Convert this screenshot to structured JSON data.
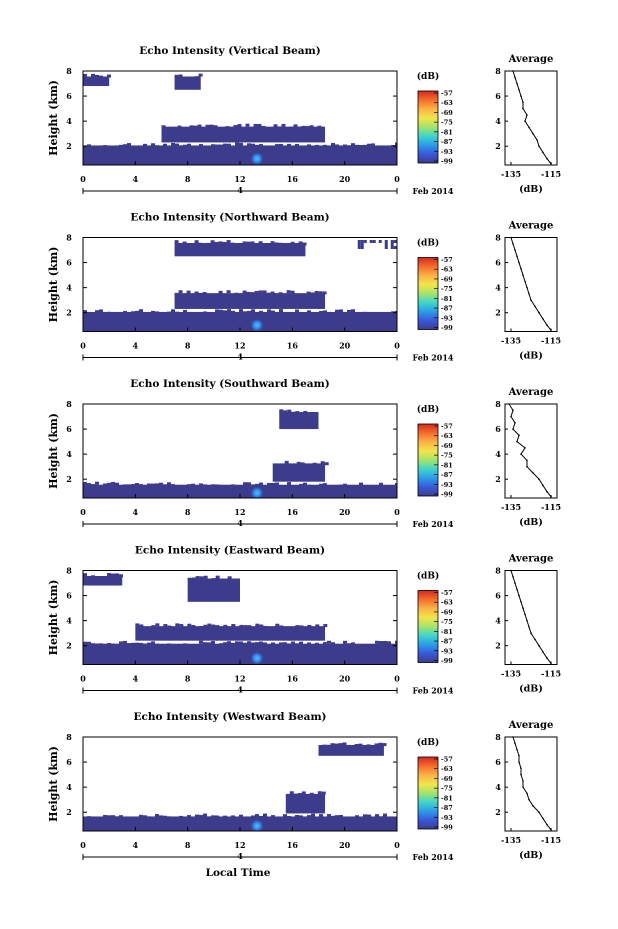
{
  "figure": {
    "xlabel": "Local Time",
    "date_label": "Feb 2014",
    "colorbar_unit": "(dB)",
    "colorbar_ticks": [
      "-57",
      "-63",
      "-69",
      "-75",
      "-81",
      "-87",
      "-93",
      "-99"
    ],
    "colorbar_colors": [
      "#d6281f",
      "#f46d2d",
      "#fbb247",
      "#f2e54a",
      "#a6e36b",
      "#3fd6c9",
      "#2c9ce8",
      "#3a58d9",
      "#3d3c8c"
    ],
    "no_echo_color": "#3d3c8c",
    "side_title": "Average",
    "side_xlabel": "(dB)",
    "side_xticks": [
      "-135",
      "-115"
    ],
    "day_tick_label": "4"
  },
  "chart_data": [
    {
      "type": "heatmap",
      "title": "Echo Intensity (Vertical Beam)",
      "ylabel": "Height (km)",
      "x_range": [
        0,
        24
      ],
      "x_ticks": [
        "0",
        "4",
        "8",
        "12",
        "16",
        "20",
        "0"
      ],
      "y_range": [
        0.5,
        8
      ],
      "y_ticks": [
        "2",
        "4",
        "6",
        "8"
      ],
      "echo_regions": [
        {
          "x": [
            0,
            24
          ],
          "y": [
            0.5,
            2.3
          ]
        },
        {
          "x": [
            6,
            18.5
          ],
          "y": [
            2.3,
            3.8
          ]
        },
        {
          "x": [
            0,
            2
          ],
          "y": [
            6.8,
            7.8
          ]
        },
        {
          "x": [
            7,
            9
          ],
          "y": [
            6.5,
            7.8
          ]
        }
      ],
      "echo_peak": {
        "x": 13.3,
        "y": 1.0,
        "level": "-81"
      },
      "profile": {
        "x_range": [
          -138,
          -112
        ],
        "y_range": [
          0.5,
          8
        ],
        "height": [
          8,
          7.5,
          7,
          6.5,
          6,
          5.5,
          5,
          4.5,
          4,
          3.5,
          3,
          2.5,
          2,
          1.5,
          1,
          0.6
        ],
        "value": [
          -134,
          -133,
          -132,
          -131,
          -130,
          -129,
          -129,
          -127,
          -128,
          -126,
          -124,
          -122,
          -121,
          -119,
          -117,
          -115
        ]
      }
    },
    {
      "type": "heatmap",
      "title": "Echo Intensity (Northward Beam)",
      "ylabel": "Height (km)",
      "x_range": [
        0,
        24
      ],
      "x_ticks": [
        "0",
        "4",
        "8",
        "12",
        "16",
        "20",
        "0"
      ],
      "y_range": [
        0.5,
        8
      ],
      "y_ticks": [
        "2",
        "4",
        "6",
        "8"
      ],
      "echo_regions": [
        {
          "x": [
            0,
            24
          ],
          "y": [
            0.5,
            2.3
          ]
        },
        {
          "x": [
            7,
            18.5
          ],
          "y": [
            2.3,
            3.8
          ]
        },
        {
          "x": [
            7,
            17
          ],
          "y": [
            6.5,
            7.8
          ]
        },
        {
          "x": [
            21,
            24
          ],
          "y": [
            7.2,
            7.8
          ]
        }
      ],
      "echo_peak": {
        "x": 13.3,
        "y": 1.0,
        "level": "-81"
      },
      "profile": {
        "x_range": [
          -138,
          -112
        ],
        "y_range": [
          0.5,
          8
        ],
        "height": [
          8,
          7.5,
          7,
          6.5,
          6,
          5.5,
          5,
          4.5,
          4,
          3.5,
          3,
          2.5,
          2,
          1.5,
          1,
          0.6
        ],
        "value": [
          -135,
          -134,
          -133,
          -132,
          -131,
          -130,
          -129,
          -128,
          -127,
          -126,
          -125,
          -123,
          -121,
          -119,
          -117,
          -115
        ]
      }
    },
    {
      "type": "heatmap",
      "title": "Echo Intensity (Southward Beam)",
      "ylabel": "Height (km)",
      "x_range": [
        0,
        24
      ],
      "x_ticks": [
        "0",
        "4",
        "8",
        "12",
        "16",
        "20",
        "0"
      ],
      "y_range": [
        0.5,
        8
      ],
      "y_ticks": [
        "2",
        "4",
        "6",
        "8"
      ],
      "echo_regions": [
        {
          "x": [
            0,
            24
          ],
          "y": [
            0.5,
            1.8
          ]
        },
        {
          "x": [
            14.5,
            18.5
          ],
          "y": [
            1.8,
            3.5
          ]
        },
        {
          "x": [
            15,
            18
          ],
          "y": [
            6.0,
            7.6
          ]
        }
      ],
      "echo_peak": {
        "x": 13.3,
        "y": 0.9,
        "level": "-81"
      },
      "profile": {
        "x_range": [
          -138,
          -112
        ],
        "y_range": [
          0.5,
          8
        ],
        "height": [
          8,
          7.5,
          7,
          6.5,
          6,
          5.5,
          5,
          4.5,
          4,
          3.5,
          3,
          2.5,
          2,
          1.5,
          1,
          0.6
        ],
        "value": [
          -136,
          -134,
          -135,
          -133,
          -134,
          -131,
          -132,
          -128,
          -130,
          -127,
          -127,
          -124,
          -121,
          -119,
          -117,
          -115
        ]
      }
    },
    {
      "type": "heatmap",
      "title": "Echo Intensity (Eastward Beam)",
      "ylabel": "Height (km)",
      "x_range": [
        0,
        24
      ],
      "x_ticks": [
        "0",
        "4",
        "8",
        "12",
        "16",
        "20",
        "0"
      ],
      "y_range": [
        0.5,
        8
      ],
      "y_ticks": [
        "2",
        "4",
        "6",
        "8"
      ],
      "echo_regions": [
        {
          "x": [
            0,
            24
          ],
          "y": [
            0.5,
            2.4
          ]
        },
        {
          "x": [
            4,
            18.5
          ],
          "y": [
            2.4,
            3.8
          ]
        },
        {
          "x": [
            0,
            3
          ],
          "y": [
            6.8,
            7.8
          ]
        },
        {
          "x": [
            8,
            12
          ],
          "y": [
            5.5,
            7.6
          ]
        }
      ],
      "echo_peak": {
        "x": 13.3,
        "y": 1.0,
        "level": "-81"
      },
      "profile": {
        "x_range": [
          -138,
          -112
        ],
        "y_range": [
          0.5,
          8
        ],
        "height": [
          8,
          7.5,
          7,
          6.5,
          6,
          5.5,
          5,
          4.5,
          4,
          3.5,
          3,
          2.5,
          2,
          1.5,
          1,
          0.6
        ],
        "value": [
          -135,
          -134,
          -133,
          -132,
          -131,
          -130,
          -129,
          -128,
          -127,
          -126,
          -125,
          -123,
          -121,
          -119,
          -117,
          -115
        ]
      }
    },
    {
      "type": "heatmap",
      "title": "Echo Intensity (Westward Beam)",
      "ylabel": "Height (km)",
      "x_range": [
        0,
        24
      ],
      "x_ticks": [
        "0",
        "4",
        "8",
        "12",
        "16",
        "20",
        "0"
      ],
      "y_range": [
        0.5,
        8
      ],
      "y_ticks": [
        "2",
        "4",
        "6",
        "8"
      ],
      "echo_regions": [
        {
          "x": [
            0,
            24
          ],
          "y": [
            0.5,
            1.9
          ]
        },
        {
          "x": [
            15.5,
            18.5
          ],
          "y": [
            1.9,
            3.7
          ]
        },
        {
          "x": [
            18,
            23
          ],
          "y": [
            6.5,
            7.6
          ]
        }
      ],
      "echo_peak": {
        "x": 13.3,
        "y": 0.9,
        "level": "-81"
      },
      "profile": {
        "x_range": [
          -138,
          -112
        ],
        "y_range": [
          0.5,
          8
        ],
        "height": [
          8,
          7.5,
          7,
          6.5,
          6,
          5.5,
          5,
          4.5,
          4,
          3.5,
          3,
          2.5,
          2,
          1.5,
          1,
          0.6
        ],
        "value": [
          -134,
          -133,
          -132,
          -131,
          -131,
          -130,
          -130,
          -129,
          -129,
          -127,
          -126,
          -124,
          -121,
          -119,
          -117,
          -115
        ]
      }
    }
  ]
}
